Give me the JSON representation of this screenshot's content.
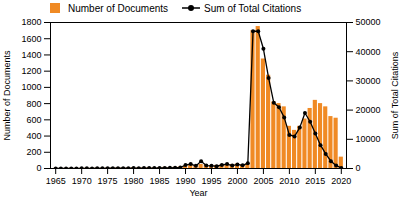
{
  "chart_data": {
    "type": "bar",
    "x_label": "Year",
    "y_label": "Number of Documents",
    "y2_label": "Sum of Total Citations",
    "legend": "top",
    "x": [
      1965,
      1966,
      1967,
      1968,
      1969,
      1970,
      1971,
      1972,
      1973,
      1974,
      1975,
      1976,
      1977,
      1978,
      1979,
      1980,
      1981,
      1982,
      1983,
      1984,
      1985,
      1986,
      1987,
      1988,
      1989,
      1990,
      1991,
      1992,
      1993,
      1994,
      1995,
      1996,
      1997,
      1998,
      1999,
      2000,
      2001,
      2002,
      2003,
      2004,
      2005,
      2006,
      2007,
      2008,
      2009,
      2010,
      2011,
      2012,
      2013,
      2014,
      2015,
      2016,
      2017,
      2018,
      2019,
      2020
    ],
    "xlim": [
      1964,
      2021
    ],
    "xticks": [
      1965,
      1970,
      1975,
      1980,
      1985,
      1990,
      1995,
      2000,
      2005,
      2010,
      2015,
      2020
    ],
    "ylim": [
      0,
      1800
    ],
    "yticks": [
      0,
      200,
      400,
      600,
      800,
      1000,
      1200,
      1400,
      1600,
      1800
    ],
    "y2lim": [
      0,
      50000
    ],
    "y2ticks": [
      0,
      10000,
      20000,
      30000,
      40000,
      50000
    ],
    "series": [
      {
        "name": "Number of Documents",
        "type": "bar",
        "color": "#f08a24",
        "values": [
          2,
          1,
          2,
          3,
          2,
          3,
          4,
          3,
          5,
          4,
          6,
          5,
          8,
          6,
          7,
          10,
          8,
          9,
          12,
          10,
          11,
          14,
          12,
          15,
          18,
          30,
          45,
          35,
          50,
          40,
          35,
          38,
          42,
          48,
          50,
          55,
          45,
          60,
          1700,
          1750,
          1350,
          1150,
          820,
          800,
          760,
          520,
          470,
          520,
          610,
          740,
          840,
          800,
          760,
          640,
          620,
          140
        ]
      },
      {
        "name": "Sum of Total Citations",
        "type": "line",
        "axis": "y2",
        "color": "#000000",
        "marker": "circle",
        "values": [
          20,
          10,
          30,
          40,
          20,
          60,
          50,
          40,
          80,
          70,
          100,
          90,
          120,
          80,
          100,
          150,
          120,
          130,
          160,
          150,
          200,
          180,
          220,
          250,
          300,
          1200,
          1500,
          900,
          2500,
          1000,
          900,
          800,
          1200,
          1500,
          1000,
          1400,
          1100,
          1800,
          47000,
          47000,
          41000,
          31000,
          22500,
          21000,
          17500,
          11500,
          11000,
          14000,
          19000,
          16000,
          12000,
          8000,
          5000,
          2500,
          1000,
          200
        ]
      }
    ]
  }
}
